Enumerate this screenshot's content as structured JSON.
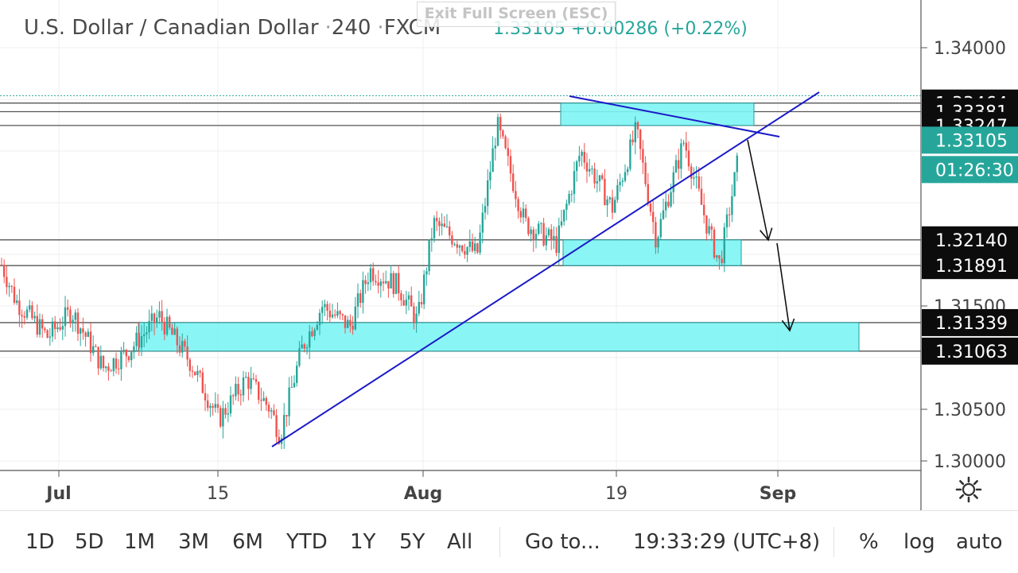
{
  "header": {
    "symbol": "U.S. Dollar / Canadian Dollar",
    "interval": "240",
    "exchange": "FXCM",
    "last": "1.33105",
    "change": "+0.00286 (+0.22%)",
    "exit_fullscreen": "Exit Full Screen (ESC)"
  },
  "chart_data": {
    "type": "candlestick",
    "x_axis_labels": [
      "Jul",
      "15",
      "Aug",
      "19",
      "Sep"
    ],
    "y_axis_ticks": [
      "1.34000",
      "1.31500",
      "1.30500",
      "1.30000"
    ],
    "ylim": [
      1.2995,
      1.3433
    ],
    "grid": true,
    "price_labels": [
      {
        "value": "1.33464",
        "style": "dark"
      },
      {
        "value": "1.33381",
        "style": "dark"
      },
      {
        "value": "1.33247",
        "style": "dark"
      },
      {
        "value": "1.33105",
        "style": "last"
      },
      {
        "value": "01:26:30",
        "style": "countdown"
      },
      {
        "value": "1.32140",
        "style": "dark"
      },
      {
        "value": "1.31891",
        "style": "dark"
      },
      {
        "value": "1.31339",
        "style": "dark"
      },
      {
        "value": "1.31063",
        "style": "dark"
      }
    ],
    "horizontal_levels": [
      1.33464,
      1.33381,
      1.33247,
      1.3214,
      1.31891,
      1.31339,
      1.31063
    ],
    "colors": {
      "up": "#26a69a",
      "down": "#ef5350",
      "zone": "#7df4f4",
      "trend": "#1a1ac8",
      "arrow": "#111111"
    }
  },
  "bottom_bar": {
    "ranges": [
      "1D",
      "5D",
      "1M",
      "3M",
      "6M",
      "YTD",
      "1Y",
      "5Y",
      "All"
    ],
    "goto": "Go to...",
    "time": "19:33:29 (UTC+8)",
    "percent": "%",
    "log": "log",
    "auto": "auto",
    "settings_icon": "gear-icon"
  }
}
